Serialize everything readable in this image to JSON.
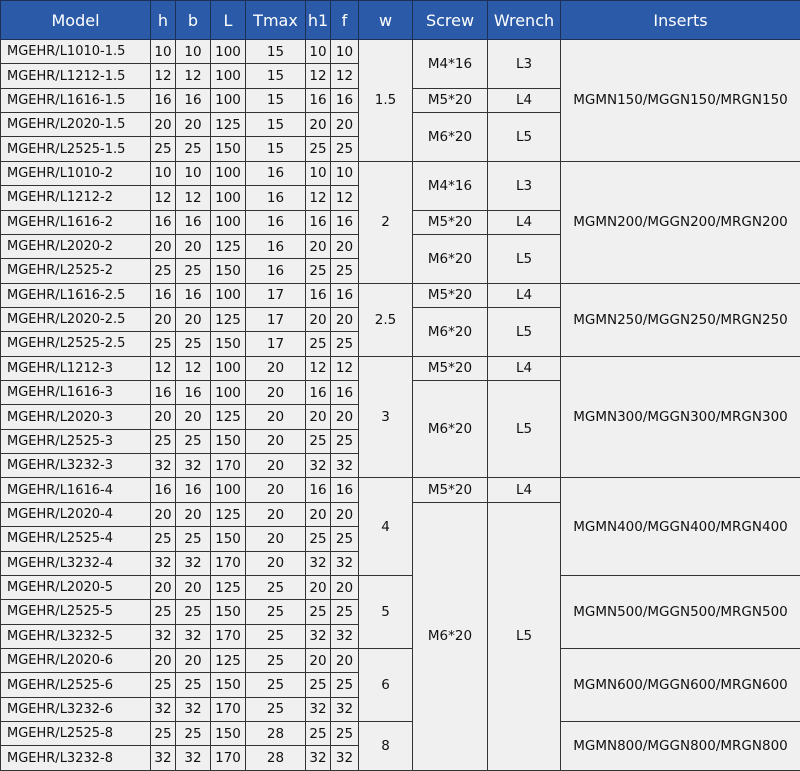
{
  "headers": [
    "Model",
    "h",
    "b",
    "L",
    "Tmax",
    "h1",
    "f",
    "w",
    "Screw",
    "Wrench",
    "Inserts"
  ],
  "rows": [
    [
      "MGEHR/L1010-1.5",
      "10",
      "10",
      "100",
      "15",
      "10",
      "10"
    ],
    [
      "MGEHR/L1212-1.5",
      "12",
      "12",
      "100",
      "15",
      "12",
      "12"
    ],
    [
      "MGEHR/L1616-1.5",
      "16",
      "16",
      "100",
      "15",
      "16",
      "16"
    ],
    [
      "MGEHR/L2020-1.5",
      "20",
      "20",
      "125",
      "15",
      "20",
      "20"
    ],
    [
      "MGEHR/L2525-1.5",
      "25",
      "25",
      "150",
      "15",
      "25",
      "25"
    ],
    [
      "MGEHR/L1010-2",
      "10",
      "10",
      "100",
      "16",
      "10",
      "10"
    ],
    [
      "MGEHR/L1212-2",
      "12",
      "12",
      "100",
      "16",
      "12",
      "12"
    ],
    [
      "MGEHR/L1616-2",
      "16",
      "16",
      "100",
      "16",
      "16",
      "16"
    ],
    [
      "MGEHR/L2020-2",
      "20",
      "20",
      "125",
      "16",
      "20",
      "20"
    ],
    [
      "MGEHR/L2525-2",
      "25",
      "25",
      "150",
      "16",
      "25",
      "25"
    ],
    [
      "MGEHR/L1616-2.5",
      "16",
      "16",
      "100",
      "17",
      "16",
      "16"
    ],
    [
      "MGEHR/L2020-2.5",
      "20",
      "20",
      "125",
      "17",
      "20",
      "20"
    ],
    [
      "MGEHR/L2525-2.5",
      "25",
      "25",
      "150",
      "17",
      "25",
      "25"
    ],
    [
      "MGEHR/L1212-3",
      "12",
      "12",
      "100",
      "20",
      "12",
      "12"
    ],
    [
      "MGEHR/L1616-3",
      "16",
      "16",
      "100",
      "20",
      "16",
      "16"
    ],
    [
      "MGEHR/L2020-3",
      "20",
      "20",
      "125",
      "20",
      "20",
      "20"
    ],
    [
      "MGEHR/L2525-3",
      "25",
      "25",
      "150",
      "20",
      "25",
      "25"
    ],
    [
      "MGEHR/L3232-3",
      "32",
      "32",
      "170",
      "20",
      "32",
      "32"
    ],
    [
      "MGEHR/L1616-4",
      "16",
      "16",
      "100",
      "20",
      "16",
      "16"
    ],
    [
      "MGEHR/L2020-4",
      "20",
      "20",
      "125",
      "20",
      "20",
      "20"
    ],
    [
      "MGEHR/L2525-4",
      "25",
      "25",
      "150",
      "20",
      "25",
      "25"
    ],
    [
      "MGEHR/L3232-4",
      "32",
      "32",
      "170",
      "20",
      "32",
      "32"
    ],
    [
      "MGEHR/L2020-5",
      "20",
      "20",
      "125",
      "25",
      "20",
      "20"
    ],
    [
      "MGEHR/L2525-5",
      "25",
      "25",
      "150",
      "25",
      "25",
      "25"
    ],
    [
      "MGEHR/L3232-5",
      "32",
      "32",
      "170",
      "25",
      "32",
      "32"
    ],
    [
      "MGEHR/L2020-6",
      "20",
      "20",
      "125",
      "25",
      "20",
      "20"
    ],
    [
      "MGEHR/L2525-6",
      "25",
      "25",
      "150",
      "25",
      "25",
      "25"
    ],
    [
      "MGEHR/L3232-6",
      "32",
      "32",
      "170",
      "25",
      "32",
      "32"
    ],
    [
      "MGEHR/L2525-8",
      "25",
      "25",
      "150",
      "28",
      "25",
      "25"
    ],
    [
      "MGEHR/L3232-8",
      "32",
      "32",
      "170",
      "28",
      "32",
      "32"
    ]
  ],
  "w_cells": [
    {
      "value": "1.5",
      "rows": 5
    },
    {
      "value": "2",
      "rows": 5
    },
    {
      "value": "2.5",
      "rows": 3
    },
    {
      "value": "3",
      "rows": 5
    },
    {
      "value": "4",
      "rows": 4
    },
    {
      "value": "5",
      "rows": 3
    },
    {
      "value": "6",
      "rows": 3
    },
    {
      "value": "8",
      "rows": 2
    }
  ],
  "screw_cells": [
    {
      "screw": "M4*16",
      "wrench": "L3",
      "rows": 2
    },
    {
      "screw": "M5*20",
      "wrench": "L4",
      "rows": 1
    },
    {
      "screw": "M6*20",
      "wrench": "L5",
      "rows": 2
    },
    {
      "screw": "M4*16",
      "wrench": "L3",
      "rows": 2
    },
    {
      "screw": "M5*20",
      "wrench": "L4",
      "rows": 1
    },
    {
      "screw": "M6*20",
      "wrench": "L5",
      "rows": 2
    },
    {
      "screw": "M5*20",
      "wrench": "L4",
      "rows": 1
    },
    {
      "screw": "M6*20",
      "wrench": "L5",
      "rows": 2
    },
    {
      "screw": "M5*20",
      "wrench": "L4",
      "rows": 1
    },
    {
      "screw": "M6*20",
      "wrench": "L5",
      "rows": 4
    },
    {
      "screw": "M5*20",
      "wrench": "L4",
      "rows": 1
    },
    {
      "screw": "M6*20",
      "wrench": "L5",
      "rows": 11
    }
  ],
  "insert_cells": [
    {
      "value": "MGMN150/MGGN150/MRGN150",
      "rows": 5
    },
    {
      "value": "MGMN200/MGGN200/MRGN200",
      "rows": 5
    },
    {
      "value": "MGMN250/MGGN250/MRGN250",
      "rows": 3
    },
    {
      "value": "MGMN300/MGGN300/MRGN300",
      "rows": 5
    },
    {
      "value": "MGMN400/MGGN400/MRGN400",
      "rows": 4
    },
    {
      "value": "MGMN500/MGGN500/MRGN500",
      "rows": 3
    },
    {
      "value": "MGMN600/MGGN600/MRGN600",
      "rows": 3
    },
    {
      "value": "MGMN800/MGGN800/MRGN800",
      "rows": 2
    }
  ],
  "colors": {
    "header_bg": "#2b5ba8",
    "cell_bg": "#f0f0f0",
    "border": "#333333"
  }
}
